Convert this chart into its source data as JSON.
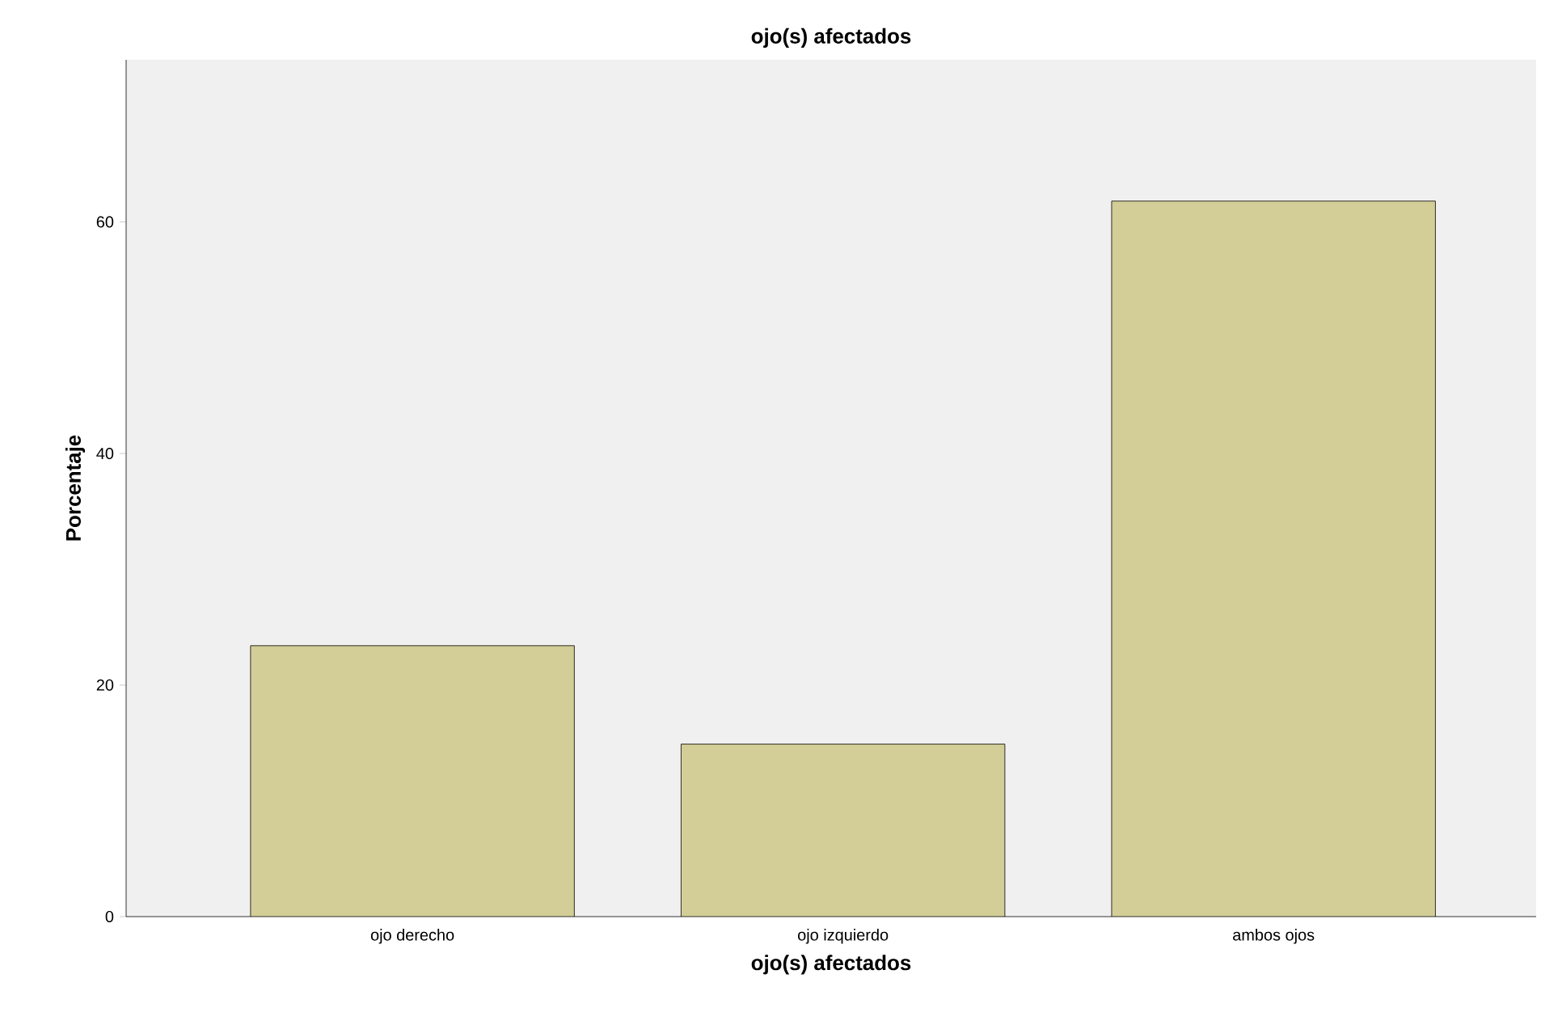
{
  "chart_data": {
    "type": "bar",
    "title": "ojo(s) afectados",
    "xlabel": "ojo(s) afectados",
    "ylabel": "Porcentaje",
    "categories": [
      "ojo derecho",
      "ojo izquierdo",
      "ambos ojos"
    ],
    "values": [
      23.4,
      14.9,
      61.8
    ],
    "color": "#d3ce97",
    "ylim": [
      0,
      74
    ],
    "yticks": [
      0,
      20,
      40,
      60
    ],
    "grid": false
  }
}
